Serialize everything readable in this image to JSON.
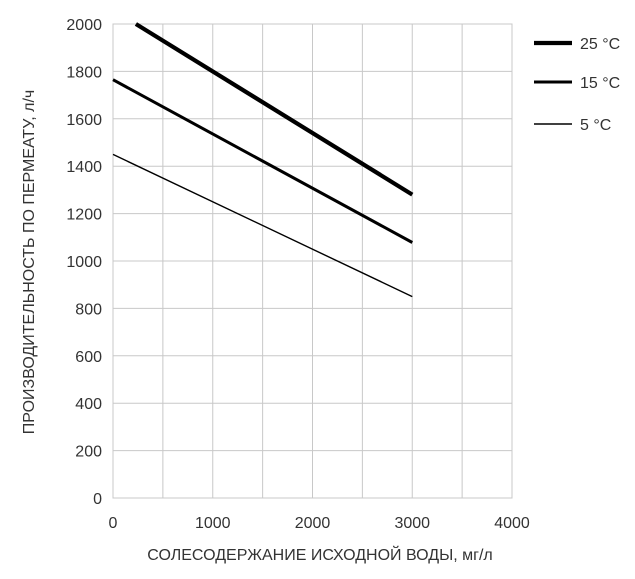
{
  "chart_data": {
    "type": "line",
    "xlabel": "СОЛЕСОДЕРЖАНИЕ ИСХОДНОЙ ВОДЫ, мг/л",
    "ylabel": "ПРОИЗВОДИТЕЛЬНОСТЬ ПО ПЕРМЕАТУ, л/ч",
    "xlim": [
      0,
      4000
    ],
    "ylim": [
      0,
      2000
    ],
    "xticks": [
      0,
      1000,
      2000,
      3000,
      4000
    ],
    "yticks": [
      0,
      200,
      400,
      600,
      800,
      1000,
      1200,
      1400,
      1600,
      1800,
      2000
    ],
    "xtick_labels": [
      "0",
      "1000",
      "2000",
      "3000",
      "4000"
    ],
    "ytick_labels": [
      "0",
      "200",
      "400",
      "600",
      "800",
      "1000",
      "1200",
      "1400",
      "1600",
      "1800",
      "2000"
    ],
    "grid": true,
    "legend_position": "right",
    "series": [
      {
        "name": "25 °C",
        "x": [
          230,
          3000
        ],
        "y": [
          2000,
          1280
        ],
        "color": "#000000",
        "weight": "thick"
      },
      {
        "name": "15 °C",
        "x": [
          0,
          3000
        ],
        "y": [
          1765,
          1078
        ],
        "color": "#000000",
        "weight": "medium"
      },
      {
        "name": "5 °C",
        "x": [
          0,
          3000
        ],
        "y": [
          1450,
          850
        ],
        "color": "#000000",
        "weight": "thin"
      }
    ]
  }
}
